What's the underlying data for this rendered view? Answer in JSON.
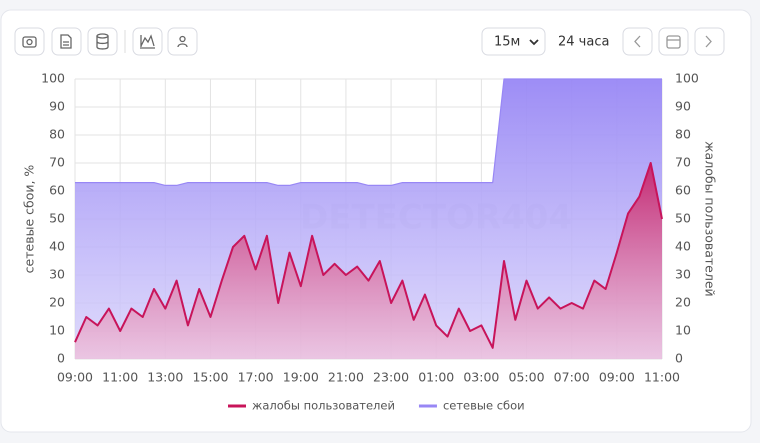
{
  "toolbar": {
    "interval": "15м",
    "range": "24 часа"
  },
  "chart_data": {
    "type": "area",
    "y_label": "сетевые сбои, %",
    "y2_label": "жалобы пользователей",
    "watermark": "DETECTOR404",
    "categories": [
      "09:00",
      null,
      null,
      null,
      "11:00",
      null,
      null,
      null,
      "13:00",
      null,
      null,
      null,
      "15:00",
      null,
      null,
      null,
      "17:00",
      null,
      null,
      null,
      "19:00",
      null,
      null,
      null,
      "21:00",
      null,
      null,
      null,
      "23:00",
      null,
      null,
      null,
      "01:00",
      null,
      null,
      null,
      "03:00",
      null,
      null,
      null,
      "05:00",
      null,
      null,
      null,
      "07:00",
      null,
      null,
      null,
      "09:00",
      null,
      null,
      null,
      "11:00"
    ],
    "series": [
      {
        "name": "жалобы пользователей",
        "color": "#c8145a",
        "axis": "y2",
        "values": [
          6,
          15,
          12,
          18,
          10,
          18,
          15,
          25,
          18,
          28,
          12,
          25,
          15,
          28,
          40,
          44,
          32,
          44,
          20,
          38,
          26,
          44,
          30,
          34,
          30,
          33,
          28,
          35,
          20,
          28,
          14,
          23,
          12,
          8,
          18,
          10,
          12,
          4,
          35,
          14,
          28,
          18,
          22,
          18,
          20,
          18,
          28,
          25,
          38,
          52,
          58,
          70,
          50
        ]
      },
      {
        "name": "сетевые сбои",
        "color": "#9887f5",
        "values": [
          63,
          63,
          63,
          63,
          63,
          63,
          63,
          63,
          62,
          62,
          63,
          63,
          63,
          63,
          63,
          63,
          63,
          63,
          62,
          62,
          63,
          63,
          63,
          63,
          63,
          63,
          62,
          62,
          62,
          63,
          63,
          63,
          63,
          63,
          63,
          63,
          63,
          63,
          100,
          100,
          100,
          100,
          100,
          100,
          100,
          100,
          100,
          100,
          100,
          100,
          100,
          100,
          100
        ]
      }
    ],
    "ylim": [
      0,
      100
    ],
    "yticks": [
      0,
      10,
      20,
      30,
      40,
      50,
      60,
      70,
      80,
      90,
      100
    ],
    "y2lim": [
      0,
      100
    ],
    "y2ticks": [
      0,
      10,
      20,
      30,
      40,
      50,
      60,
      70,
      80,
      90,
      100
    ],
    "grid": true
  }
}
